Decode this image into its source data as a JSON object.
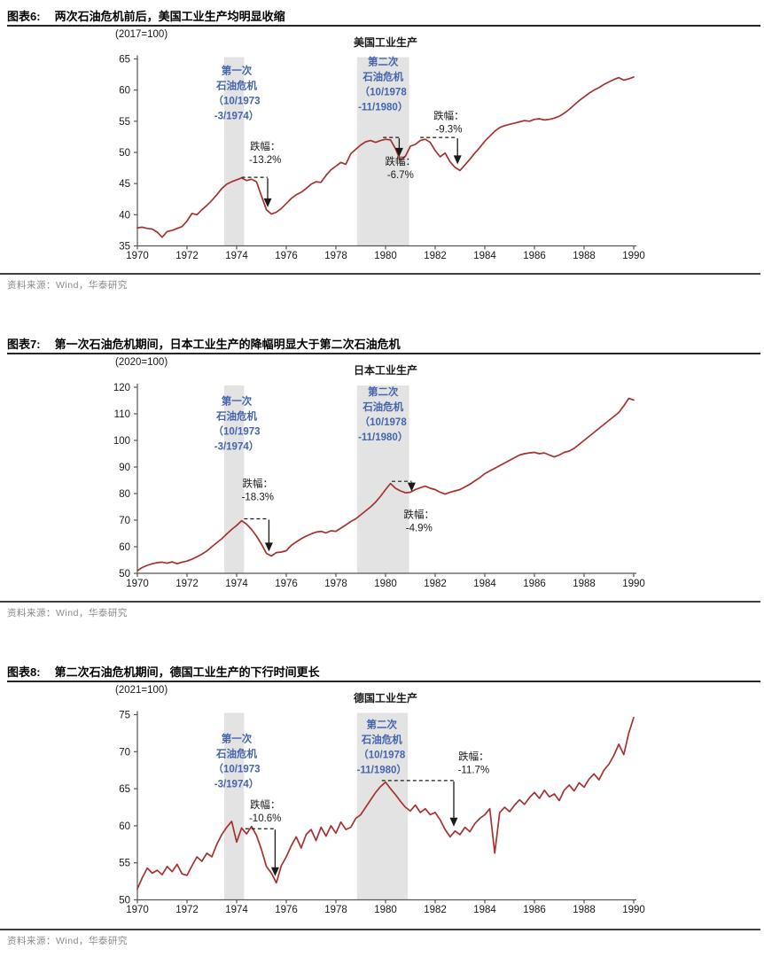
{
  "colors": {
    "line": "#A53230",
    "band": "#E3E3E3",
    "band_label": "#4565AE",
    "annotation": "#1a1a1a",
    "axis": "#555555",
    "tick_text": "#1a1a1a",
    "header_rule": "#262626",
    "source_rule": "#404040",
    "source_text": "#8a8a8a"
  },
  "chart_data": [
    {
      "type": "line",
      "figure_label": "图表6:",
      "caption": "两次石油危机前后，美国工业生产均明显收缩",
      "index_note": "(2017=100)",
      "title": "美国工业生产",
      "source": "资料来源：Wind，华泰研究",
      "legend": [],
      "grid": false,
      "x0": 1970,
      "dx": 0.2,
      "xlim": [
        1970,
        1990
      ],
      "ylim": [
        35,
        65
      ],
      "ytick_step": 5,
      "xticks": [
        1970,
        1972,
        1974,
        1976,
        1978,
        1980,
        1982,
        1984,
        1986,
        1988,
        1990
      ],
      "values": [
        37.9,
        38.0,
        37.8,
        37.7,
        37.2,
        36.4,
        37.3,
        37.5,
        37.8,
        38.1,
        39.0,
        40.2,
        40.0,
        40.8,
        41.5,
        42.3,
        43.2,
        44.2,
        44.9,
        45.3,
        45.6,
        45.9,
        45.5,
        45.7,
        45.3,
        43.0,
        40.8,
        40.1,
        40.4,
        41.0,
        41.8,
        42.6,
        43.2,
        43.6,
        44.2,
        44.9,
        45.3,
        45.2,
        46.3,
        47.2,
        47.8,
        48.4,
        48.1,
        49.8,
        50.5,
        51.2,
        51.7,
        51.9,
        51.6,
        51.9,
        52.1,
        52.0,
        50.6,
        48.7,
        49.4,
        51.0,
        51.3,
        51.9,
        52.1,
        51.6,
        50.3,
        49.3,
        49.9,
        48.5,
        47.6,
        47.1,
        48.0,
        48.9,
        49.9,
        50.8,
        51.8,
        52.6,
        53.4,
        54.0,
        54.3,
        54.5,
        54.7,
        54.9,
        55.1,
        55.0,
        55.3,
        55.4,
        55.2,
        55.3,
        55.5,
        55.8,
        56.3,
        56.9,
        57.6,
        58.3,
        58.9,
        59.5,
        60.0,
        60.4,
        60.9,
        61.3,
        61.7,
        62.0,
        61.6,
        61.8,
        62.1
      ],
      "bands": [
        {
          "x1": 1973.5,
          "x2": 1974.3,
          "label_lines": [
            "第一次",
            "石油危机",
            "（10/1973",
            "-3/1974）"
          ],
          "label_x": 1974.0,
          "label_top_value": 62.6
        },
        {
          "x1": 1978.85,
          "x2": 1980.95,
          "label_lines": [
            "第二次",
            "石油危机",
            "（10/1978",
            "-11/1980）"
          ],
          "label_x": 1979.9,
          "label_top_value": 64.0
        }
      ],
      "annotations": [
        {
          "lines": [
            "跌幅：",
            "-13.2%"
          ],
          "label_x": 1975.15,
          "label_top_value": 50.4,
          "dash_value": 46.0,
          "dash_x1": 1974.2,
          "dash_x2": 1975.25,
          "arrow_x": 1975.25,
          "arrow_to_value": 41.2
        },
        {
          "lines": [
            "跌幅：",
            "-6.7%"
          ],
          "label_x": 1980.6,
          "label_top_value": 48.0,
          "dash_value": 52.4,
          "dash_x1": 1979.9,
          "dash_x2": 1980.55,
          "arrow_x": 1980.55,
          "arrow_to_value": 49.3
        },
        {
          "lines": [
            "跌幅：",
            "-9.3%"
          ],
          "label_x": 1982.55,
          "label_top_value": 55.3,
          "dash_value": 52.4,
          "dash_x1": 1981.4,
          "dash_x2": 1982.9,
          "arrow_x": 1982.9,
          "arrow_to_value": 48.1
        }
      ]
    },
    {
      "type": "line",
      "figure_label": "图表7:",
      "caption": "第一次石油危机期间，日本工业生产的降幅明显大于第二次石油危机",
      "index_note": "(2020=100)",
      "title": "日本工业生产",
      "source": "资料来源：Wind，华泰研究",
      "legend": [],
      "grid": false,
      "x0": 1970,
      "dx": 0.2,
      "xlim": [
        1970,
        1990
      ],
      "ylim": [
        50,
        120
      ],
      "ytick_step": 10,
      "xticks": [
        1970,
        1972,
        1974,
        1976,
        1978,
        1980,
        1982,
        1984,
        1986,
        1988,
        1990
      ],
      "values": [
        51.0,
        52.2,
        53.0,
        53.6,
        54.0,
        54.2,
        53.8,
        54.3,
        53.6,
        54.2,
        54.6,
        55.3,
        56.2,
        57.2,
        58.4,
        60.0,
        61.5,
        63.0,
        64.8,
        66.5,
        68.0,
        69.8,
        68.5,
        66.5,
        64.0,
        61.0,
        57.5,
        56.5,
        57.8,
        58.0,
        58.5,
        60.5,
        61.8,
        63.0,
        64.0,
        64.8,
        65.5,
        65.8,
        65.2,
        66.0,
        65.8,
        67.0,
        68.2,
        69.5,
        70.5,
        72.0,
        73.5,
        75.0,
        76.8,
        79.0,
        81.5,
        83.8,
        82.0,
        81.0,
        80.3,
        80.5,
        81.5,
        82.2,
        82.8,
        82.0,
        81.5,
        80.5,
        79.8,
        80.5,
        81.0,
        81.5,
        82.5,
        83.5,
        84.8,
        86.0,
        87.5,
        88.5,
        89.5,
        90.5,
        91.5,
        92.5,
        93.5,
        94.5,
        95.0,
        95.3,
        95.5,
        95.0,
        95.3,
        94.5,
        93.8,
        94.5,
        95.5,
        96.0,
        97.0,
        98.5,
        100.0,
        101.5,
        103.0,
        104.5,
        106.0,
        107.5,
        109.0,
        110.5,
        113.0,
        115.8,
        115.2
      ],
      "bands": [
        {
          "x1": 1973.5,
          "x2": 1974.3,
          "label_lines": [
            "第一次",
            "石油危机",
            "（10/1973",
            "-3/1974）"
          ],
          "label_x": 1974.0,
          "label_top_value": 113.5
        },
        {
          "x1": 1978.85,
          "x2": 1980.95,
          "label_lines": [
            "第二次",
            "石油危机",
            "（10/1978",
            "-11/1980）"
          ],
          "label_x": 1979.9,
          "label_top_value": 117.0
        }
      ],
      "annotations": [
        {
          "lines": [
            "跌幅：",
            "-18.3%"
          ],
          "label_x": 1974.85,
          "label_top_value": 82.5,
          "dash_value": 70.5,
          "dash_x1": 1974.3,
          "dash_x2": 1975.3,
          "arrow_x": 1975.3,
          "arrow_to_value": 58.2
        },
        {
          "lines": [
            "跌幅：",
            "-4.9%"
          ],
          "label_x": 1981.35,
          "label_top_value": 70.8,
          "dash_value": 84.6,
          "dash_x1": 1980.25,
          "dash_x2": 1981.05,
          "arrow_x": 1981.05,
          "arrow_to_value": 80.8
        }
      ]
    },
    {
      "type": "line",
      "figure_label": "图表8:",
      "caption": "第二次石油危机期间，德国工业生产的下行时间更长",
      "index_note": "(2021=100)",
      "title": "德国工业生产",
      "source": "资料来源：Wind，华泰研究",
      "legend": [],
      "grid": false,
      "x0": 1970,
      "dx": 0.2,
      "xlim": [
        1970,
        1990
      ],
      "ylim": [
        50,
        75
      ],
      "ytick_step": 5,
      "xticks": [
        1970,
        1972,
        1974,
        1976,
        1978,
        1980,
        1982,
        1984,
        1986,
        1988,
        1990
      ],
      "values": [
        51.5,
        53.0,
        54.3,
        53.6,
        54.0,
        53.4,
        54.5,
        53.8,
        54.8,
        53.5,
        53.3,
        54.6,
        55.8,
        55.2,
        56.3,
        55.8,
        57.5,
        58.8,
        59.8,
        60.6,
        57.8,
        59.7,
        58.9,
        59.9,
        58.7,
        56.8,
        54.5,
        53.6,
        52.3,
        54.6,
        55.8,
        57.3,
        58.5,
        57.0,
        58.8,
        59.5,
        58.0,
        59.8,
        58.6,
        60.0,
        59.0,
        60.5,
        59.5,
        59.8,
        61.0,
        61.5,
        62.5,
        63.5,
        64.5,
        65.3,
        65.9,
        65.0,
        64.2,
        63.3,
        62.5,
        62.0,
        62.8,
        61.8,
        62.3,
        61.5,
        61.8,
        60.8,
        59.5,
        58.5,
        59.3,
        58.8,
        59.8,
        59.2,
        60.3,
        61.0,
        61.5,
        62.3,
        56.3,
        61.8,
        62.5,
        61.9,
        62.8,
        63.5,
        62.9,
        63.8,
        64.5,
        63.7,
        64.8,
        63.9,
        64.3,
        63.4,
        64.8,
        65.5,
        64.7,
        65.8,
        65.2,
        66.3,
        67.0,
        66.2,
        67.5,
        68.3,
        69.5,
        71.0,
        69.6,
        72.5,
        74.6
      ],
      "bands": [
        {
          "x1": 1973.5,
          "x2": 1974.3,
          "label_lines": [
            "第一次",
            "石油危机",
            "（10/1973",
            "-3/1974）"
          ],
          "label_x": 1974.0,
          "label_top_value": 71.3
        },
        {
          "x1": 1978.85,
          "x2": 1980.9,
          "label_lines": [
            "第二次",
            "石油危机",
            "（10/1978",
            "-11/1980）"
          ],
          "label_x": 1979.85,
          "label_top_value": 73.2
        }
      ],
      "annotations": [
        {
          "lines": [
            "跌幅：",
            "-10.6%"
          ],
          "label_x": 1975.15,
          "label_top_value": 62.4,
          "dash_value": 59.6,
          "dash_x1": 1974.35,
          "dash_x2": 1975.55,
          "arrow_x": 1975.55,
          "arrow_to_value": 53.2
        },
        {
          "lines": [
            "跌幅：",
            "-11.7%"
          ],
          "label_x": 1983.55,
          "label_top_value": 68.9,
          "dash_value": 66.1,
          "dash_x1": 1979.85,
          "dash_x2": 1982.75,
          "arrow_x": 1982.75,
          "arrow_to_value": 59.9
        }
      ]
    }
  ]
}
